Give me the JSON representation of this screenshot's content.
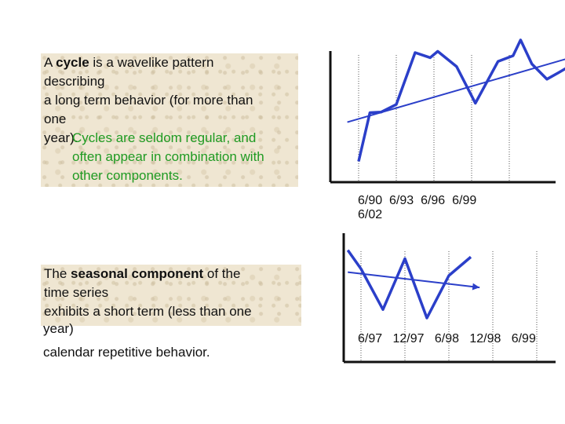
{
  "cycle_text": {
    "l1_pre": "A ",
    "l1_bold": "cycle",
    "l1_post": " is a wavelike pattern",
    "l2": "describing",
    "l3": "a long term behavior (for more than",
    "l4": "one",
    "l5": "year)."
  },
  "cycle_note": {
    "l1": "Cycles are seldom regular, and",
    "l2": "often appear in combination with",
    "l3": "other components."
  },
  "seasonal_text": {
    "l1_pre": "The ",
    "l1_bold": "seasonal component",
    "l1_post": " of the",
    "l2": "time series",
    "l3": "exhibits a short term (less than one",
    "l4": "year)",
    "l5": "calendar repetitive behavior."
  },
  "chart_data": [
    {
      "type": "line",
      "tick_labels_line1": "6/90  6/93  6/96  6/99",
      "tick_labels_line2": "6/02",
      "x": [
        "6/90",
        "6/93",
        "6/96",
        "6/99",
        "6/02"
      ],
      "series": [
        {
          "points": [
            [
              0,
              18
            ],
            [
              0.3,
              95
            ],
            [
              0.6,
              96
            ],
            [
              1.0,
              108
            ],
            [
              1.5,
              190
            ],
            [
              1.9,
              182
            ],
            [
              2.1,
              192
            ],
            [
              2.6,
              168
            ],
            [
              3.1,
              110
            ],
            [
              3.7,
              176
            ],
            [
              4.1,
              185
            ],
            [
              4.3,
              210
            ],
            [
              4.6,
              172
            ],
            [
              5.0,
              148
            ],
            [
              5.3,
              158
            ],
            [
              5.7,
              172
            ]
          ],
          "color": "#2b3fc9"
        },
        {
          "points": [
            [
              -0.3,
              80
            ],
            [
              5.8,
              185
            ]
          ],
          "color": "#2b3fc9",
          "trend": true
        }
      ],
      "color": "#2b3fc9"
    },
    {
      "type": "line",
      "tick_labels": "6/97   12/97   6/98   12/98   6/99",
      "x": [
        "6/97",
        "12/97",
        "6/98",
        "12/98",
        "6/99"
      ],
      "series": [
        {
          "points": [
            [
              -0.3,
              80
            ],
            [
              0,
              58
            ],
            [
              0.5,
              10
            ],
            [
              1.0,
              70
            ],
            [
              1.5,
              0
            ],
            [
              2.0,
              50
            ],
            [
              2.5,
              72
            ]
          ],
          "color": "#2b3fc9"
        },
        {
          "points": [
            [
              -0.3,
              54
            ],
            [
              2.7,
              36
            ]
          ],
          "color": "#2b3fc9",
          "trend": true
        }
      ],
      "color": "#2b3fc9"
    }
  ]
}
